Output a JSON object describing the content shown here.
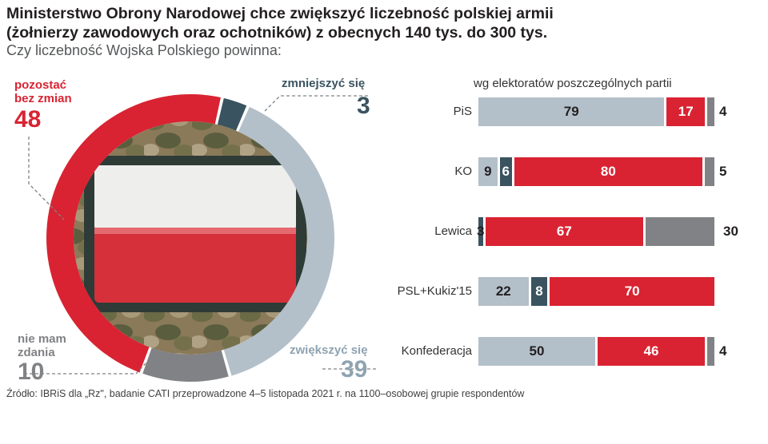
{
  "title_line1": "Ministerstwo Obrony Narodowej chce zwiększyć liczebność polskiej armii",
  "title_line2": "(żołnierzy zawodowych oraz ochotników) z obecnych 140 tys. do 300 tys.",
  "subtitle": "Czy liczebność Wojska Polskiego powinna:",
  "source": "Źródło: IBRiS dla „Rz\", badanie CATI przeprowadzone 4–5 listopada 2021 r. na 1100–osobowej grupie respondentów",
  "colors": {
    "red": "#d92332",
    "dark": "#3a5360",
    "grey": "#808285",
    "light": "#b3c0ca",
    "dark_label": "#3a5360",
    "light_label": "#8fa3b1"
  },
  "chart_data": [
    {
      "type": "pie",
      "variant": "donut",
      "title": "",
      "slices": [
        {
          "label_line1": "pozostać",
          "label_line2": "bez zmian",
          "value": 48,
          "color": "#d92332"
        },
        {
          "label_line1": "zmniejszyć się",
          "label_line2": "",
          "value": 3,
          "color": "#3a5360"
        },
        {
          "label_line1": "zwiększyć się",
          "label_line2": "",
          "value": 39,
          "color": "#b3c0ca"
        },
        {
          "label_line1": "nie mam",
          "label_line2": "zdania",
          "value": 10,
          "color": "#808285"
        }
      ],
      "center_image": "polish-flag-patch"
    },
    {
      "type": "bar",
      "orientation": "horizontal",
      "stacked": true,
      "title": "wg elektoratów poszczególnych partii",
      "categories": [
        "PiS",
        "KO",
        "Lewica",
        "PSL+Kukiz'15",
        "Konfederacja"
      ],
      "series": [
        {
          "key": "zwiekszyc",
          "values": [
            79,
            9,
            0,
            22,
            50
          ],
          "color": "#b3c0ca"
        },
        {
          "key": "zmniejszyc",
          "values": [
            0,
            6,
            3,
            8,
            0
          ],
          "color": "#3a5360"
        },
        {
          "key": "bez_zmian",
          "values": [
            17,
            80,
            67,
            70,
            46
          ],
          "color": "#d92332"
        },
        {
          "key": "nie_wiem",
          "values": [
            4,
            5,
            30,
            0,
            4
          ],
          "color": "#808285"
        }
      ],
      "xlim": [
        0,
        100
      ]
    }
  ]
}
